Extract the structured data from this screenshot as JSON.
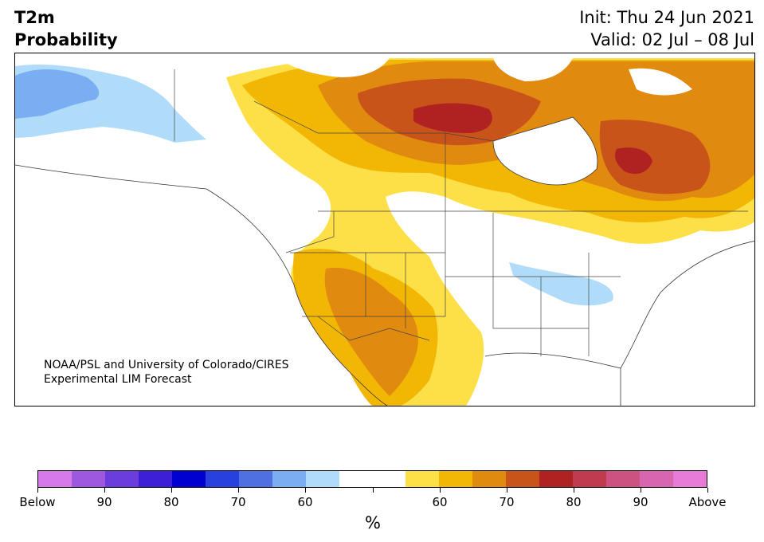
{
  "title": {
    "variable": "T2m",
    "subtitle": "Probability",
    "init": "Init: Thu 24 Jun 2021",
    "valid": "Valid: 02 Jul – 08 Jul"
  },
  "credit": {
    "line1": "NOAA/PSL and University of Colorado/CIRES",
    "line2": "Experimental LIM Forecast"
  },
  "colorbar": {
    "colors": [
      "#d57ae8",
      "#9e58e0",
      "#6a3ddc",
      "#3c1fd6",
      "#0000d0",
      "#2740de",
      "#4e70e0",
      "#79aef2",
      "#b0dcfa",
      "#ffffff",
      "#ffffff",
      "#fde047",
      "#f2b705",
      "#e08a0f",
      "#c9541a",
      "#b02222",
      "#c03a50",
      "#cc5282",
      "#d865b0",
      "#e87ad8"
    ],
    "labels": [
      "Below",
      "90",
      "80",
      "70",
      "60",
      "",
      "60",
      "70",
      "80",
      "90",
      "Above"
    ],
    "unit": "%"
  },
  "map": {
    "categories": {
      "above_50_60": "#fde047",
      "above_60_70": "#f2b705",
      "above_70_80": "#e08a0f",
      "above_80_90": "#c9541a",
      "above_90": "#b02222",
      "below_50_60": "#b0dcfa",
      "below_60_70": "#79aef2"
    }
  }
}
